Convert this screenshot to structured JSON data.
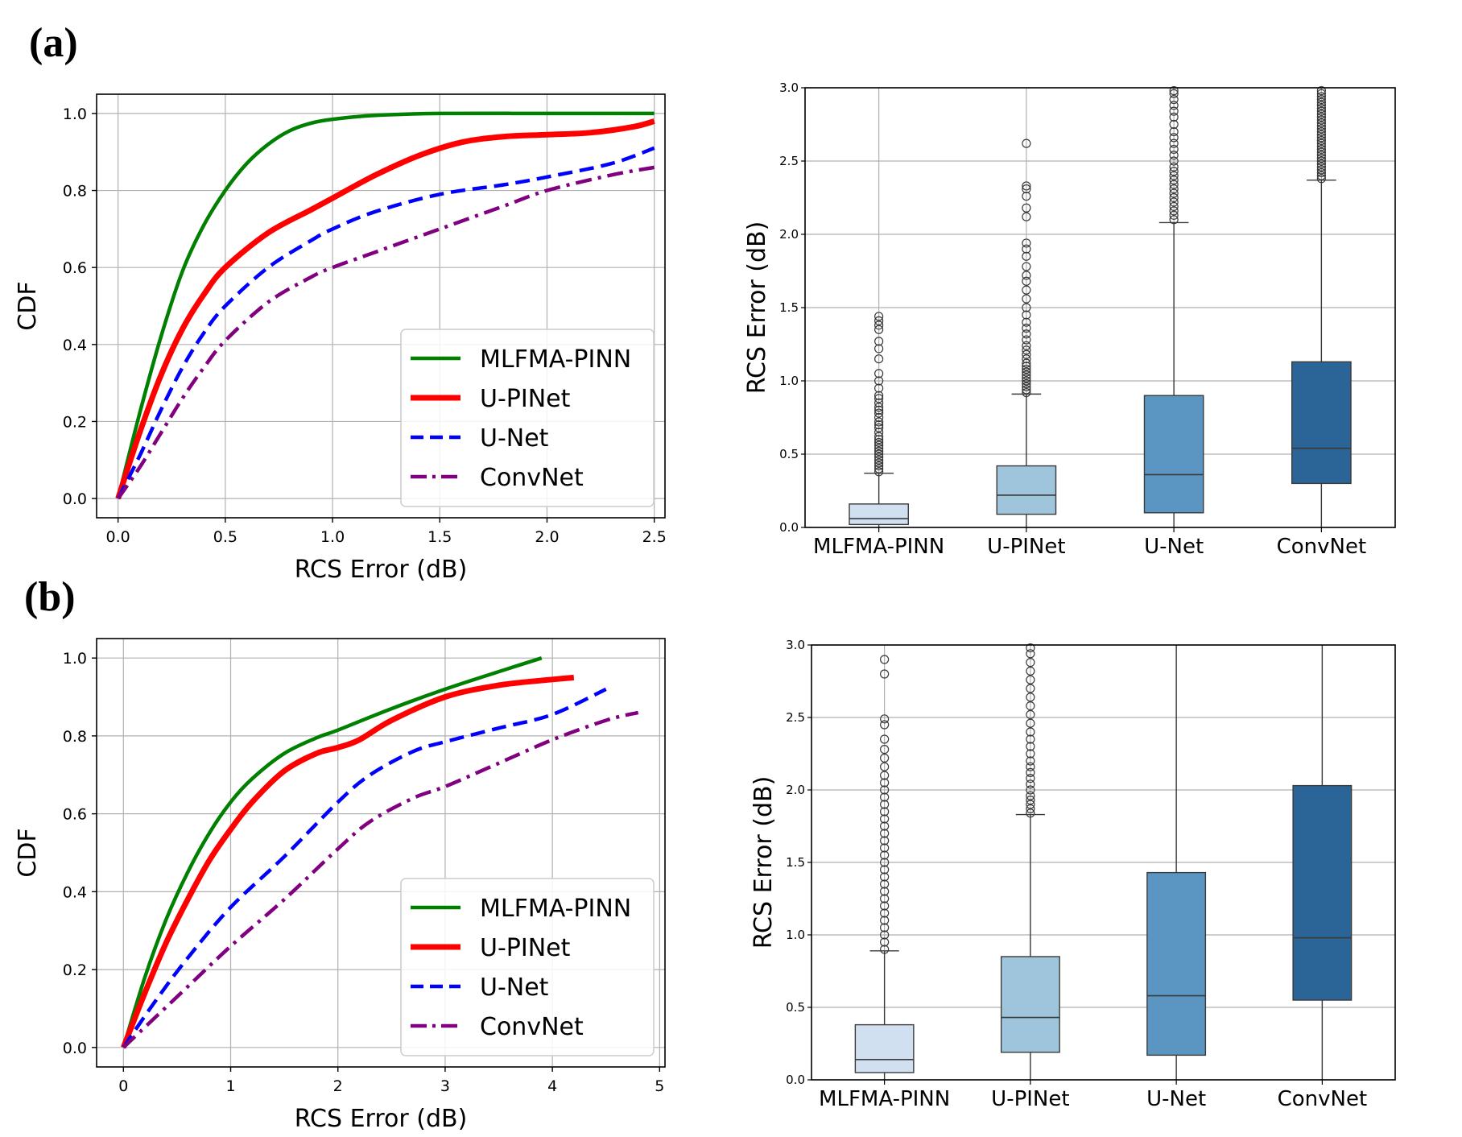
{
  "labels": {
    "a": "(a)",
    "b": "(b)"
  },
  "chart_data": [
    {
      "id": "a-cdf",
      "type": "line",
      "xlabel": "RCS Error (dB)",
      "ylabel": "CDF",
      "xlim": [
        -0.1,
        2.55
      ],
      "ylim": [
        -0.05,
        1.05
      ],
      "xticks": [
        0.0,
        0.5,
        1.0,
        1.5,
        2.0,
        2.5
      ],
      "xtick_labels": [
        "0.0",
        "0.5",
        "1.0",
        "1.5",
        "2.0",
        "2.5"
      ],
      "yticks": [
        0.0,
        0.2,
        0.4,
        0.6,
        0.8,
        1.0
      ],
      "ytick_labels": [
        "0.0",
        "0.2",
        "0.4",
        "0.6",
        "0.8",
        "1.0"
      ],
      "grid": true,
      "legend": "lower-right",
      "series": [
        {
          "name": "MLFMA-PINN",
          "color": "#008000",
          "style": "solid",
          "x": [
            0,
            0.1,
            0.2,
            0.3,
            0.4,
            0.5,
            0.6,
            0.7,
            0.8,
            0.9,
            1.0,
            1.2,
            1.5,
            2.0,
            2.5
          ],
          "y": [
            0,
            0.22,
            0.42,
            0.59,
            0.71,
            0.8,
            0.87,
            0.92,
            0.955,
            0.975,
            0.985,
            0.995,
            1.0,
            1.0,
            1.0
          ]
        },
        {
          "name": "U-PINet",
          "color": "#ff0000",
          "style": "solid",
          "x": [
            0,
            0.1,
            0.2,
            0.3,
            0.4,
            0.5,
            0.7,
            0.9,
            1.0,
            1.2,
            1.4,
            1.6,
            1.8,
            2.0,
            2.2,
            2.4,
            2.5
          ],
          "y": [
            0,
            0.17,
            0.32,
            0.44,
            0.53,
            0.6,
            0.69,
            0.75,
            0.78,
            0.84,
            0.89,
            0.925,
            0.94,
            0.945,
            0.95,
            0.965,
            0.98
          ]
        },
        {
          "name": "U-Net",
          "color": "#0000ff",
          "style": "dashed",
          "x": [
            0,
            0.1,
            0.2,
            0.3,
            0.4,
            0.5,
            0.7,
            0.9,
            1.0,
            1.2,
            1.5,
            1.8,
            2.0,
            2.3,
            2.5
          ],
          "y": [
            0,
            0.11,
            0.23,
            0.34,
            0.43,
            0.5,
            0.6,
            0.67,
            0.7,
            0.745,
            0.79,
            0.815,
            0.835,
            0.87,
            0.91
          ]
        },
        {
          "name": "ConvNet",
          "color": "#800080",
          "style": "dashdot",
          "x": [
            0,
            0.1,
            0.2,
            0.3,
            0.4,
            0.5,
            0.7,
            0.9,
            1.0,
            1.2,
            1.5,
            1.8,
            2.0,
            2.3,
            2.5
          ],
          "y": [
            0,
            0.08,
            0.17,
            0.26,
            0.34,
            0.41,
            0.51,
            0.575,
            0.6,
            0.64,
            0.7,
            0.76,
            0.8,
            0.84,
            0.86
          ]
        }
      ]
    },
    {
      "id": "a-box",
      "type": "box",
      "ylabel": "RCS Error (dB)",
      "ylim": [
        0.0,
        3.0
      ],
      "yticks": [
        0.0,
        0.5,
        1.0,
        1.5,
        2.0,
        2.5,
        3.0
      ],
      "ytick_labels": [
        "0.0",
        "0.5",
        "1.0",
        "1.5",
        "2.0",
        "2.5",
        "3.0"
      ],
      "grid": true,
      "categories": [
        "MLFMA-PINN",
        "U-PINet",
        "U-Net",
        "ConvNet"
      ],
      "colors": [
        "#d1e0f0",
        "#9ec5dc",
        "#5a96c1",
        "#2b6496"
      ],
      "boxes": [
        {
          "q1": 0.02,
          "median": 0.06,
          "q3": 0.16,
          "whisker_low": 0.0,
          "whisker_high": 0.37,
          "outliers": [
            0.38,
            0.4,
            0.42,
            0.44,
            0.46,
            0.48,
            0.5,
            0.52,
            0.54,
            0.56,
            0.58,
            0.6,
            0.62,
            0.65,
            0.68,
            0.7,
            0.72,
            0.75,
            0.78,
            0.8,
            0.82,
            0.85,
            0.88,
            0.9,
            0.95,
            1.0,
            1.05,
            1.15,
            1.22,
            1.27,
            1.35,
            1.38,
            1.41,
            1.44
          ]
        },
        {
          "q1": 0.09,
          "median": 0.22,
          "q3": 0.42,
          "whisker_low": 0.0,
          "whisker_high": 0.91,
          "outliers": [
            0.92,
            0.94,
            0.96,
            0.98,
            1.0,
            1.02,
            1.04,
            1.06,
            1.08,
            1.1,
            1.12,
            1.15,
            1.18,
            1.21,
            1.24,
            1.28,
            1.32,
            1.36,
            1.4,
            1.45,
            1.5,
            1.56,
            1.62,
            1.68,
            1.72,
            1.78,
            1.85,
            1.9,
            1.94,
            2.12,
            2.18,
            2.26,
            2.31,
            2.33,
            2.62
          ]
        },
        {
          "q1": 0.1,
          "median": 0.36,
          "q3": 0.9,
          "whisker_low": 0.0,
          "whisker_high": 2.08,
          "outliers": [
            2.1,
            2.13,
            2.16,
            2.19,
            2.22,
            2.25,
            2.28,
            2.31,
            2.34,
            2.37,
            2.4,
            2.43,
            2.46,
            2.5,
            2.54,
            2.58,
            2.62,
            2.66,
            2.7,
            2.75,
            2.8,
            2.84,
            2.88,
            2.92,
            2.96,
            2.98
          ]
        },
        {
          "q1": 0.3,
          "median": 0.54,
          "q3": 1.13,
          "whisker_low": 0.0,
          "whisker_high": 2.37,
          "outliers": [
            2.38,
            2.4,
            2.42,
            2.44,
            2.46,
            2.48,
            2.5,
            2.52,
            2.54,
            2.56,
            2.58,
            2.6,
            2.62,
            2.64,
            2.66,
            2.68,
            2.7,
            2.72,
            2.74,
            2.76,
            2.78,
            2.8,
            2.82,
            2.84,
            2.86,
            2.88,
            2.9,
            2.92,
            2.94,
            2.96,
            2.98
          ]
        }
      ]
    },
    {
      "id": "b-cdf",
      "type": "line",
      "xlabel": "RCS Error (dB)",
      "ylabel": "CDF",
      "xlim": [
        -0.25,
        5.05
      ],
      "ylim": [
        -0.05,
        1.05
      ],
      "xticks": [
        0,
        1,
        2,
        3,
        4,
        5
      ],
      "xtick_labels": [
        "0",
        "1",
        "2",
        "3",
        "4",
        "5"
      ],
      "yticks": [
        0.0,
        0.2,
        0.4,
        0.6,
        0.8,
        1.0
      ],
      "ytick_labels": [
        "0.0",
        "0.2",
        "0.4",
        "0.6",
        "0.8",
        "1.0"
      ],
      "grid": true,
      "legend": "lower-right",
      "series": [
        {
          "name": "MLFMA-PINN",
          "color": "#008000",
          "style": "solid",
          "x": [
            0,
            0.2,
            0.4,
            0.6,
            0.8,
            1.0,
            1.2,
            1.5,
            1.8,
            2.0,
            2.5,
            3.0,
            3.5,
            3.9
          ],
          "y": [
            0,
            0.18,
            0.33,
            0.45,
            0.55,
            0.63,
            0.69,
            0.755,
            0.795,
            0.815,
            0.87,
            0.92,
            0.965,
            1.0
          ]
        },
        {
          "name": "U-PINet",
          "color": "#ff0000",
          "style": "solid",
          "x": [
            0,
            0.2,
            0.4,
            0.6,
            0.8,
            1.0,
            1.2,
            1.5,
            1.8,
            2.0,
            2.2,
            2.5,
            3.0,
            3.5,
            4.0,
            4.2
          ],
          "y": [
            0,
            0.14,
            0.27,
            0.38,
            0.48,
            0.56,
            0.63,
            0.71,
            0.755,
            0.77,
            0.79,
            0.84,
            0.9,
            0.93,
            0.945,
            0.95
          ]
        },
        {
          "name": "U-Net",
          "color": "#0000ff",
          "style": "dashed",
          "x": [
            0,
            0.3,
            0.6,
            1.0,
            1.5,
            2.0,
            2.3,
            2.7,
            3.0,
            3.5,
            4.0,
            4.5
          ],
          "y": [
            0,
            0.12,
            0.23,
            0.36,
            0.49,
            0.63,
            0.7,
            0.76,
            0.785,
            0.82,
            0.855,
            0.92
          ]
        },
        {
          "name": "ConvNet",
          "color": "#800080",
          "style": "dashdot",
          "x": [
            0,
            0.5,
            1.0,
            1.5,
            2.0,
            2.3,
            2.7,
            3.0,
            3.5,
            4.0,
            4.5,
            4.8
          ],
          "y": [
            0,
            0.13,
            0.26,
            0.38,
            0.51,
            0.58,
            0.64,
            0.67,
            0.73,
            0.79,
            0.84,
            0.86
          ]
        }
      ]
    },
    {
      "id": "b-box",
      "type": "box",
      "ylabel": "RCS Error (dB)",
      "ylim": [
        0.0,
        3.0
      ],
      "yticks": [
        0.0,
        0.5,
        1.0,
        1.5,
        2.0,
        2.5,
        3.0
      ],
      "ytick_labels": [
        "0.0",
        "0.5",
        "1.0",
        "1.5",
        "2.0",
        "2.5",
        "3.0"
      ],
      "grid": true,
      "categories": [
        "MLFMA-PINN",
        "U-PINet",
        "U-Net",
        "ConvNet"
      ],
      "colors": [
        "#d1e0f0",
        "#9ec5dc",
        "#5a96c1",
        "#2b6496"
      ],
      "boxes": [
        {
          "q1": 0.05,
          "median": 0.14,
          "q3": 0.38,
          "whisker_low": 0.0,
          "whisker_high": 0.89,
          "outliers": [
            0.9,
            0.95,
            1.0,
            1.05,
            1.1,
            1.15,
            1.2,
            1.25,
            1.3,
            1.35,
            1.4,
            1.45,
            1.5,
            1.55,
            1.6,
            1.65,
            1.7,
            1.75,
            1.8,
            1.85,
            1.9,
            1.95,
            2.0,
            2.05,
            2.1,
            2.16,
            2.22,
            2.28,
            2.35,
            2.45,
            2.49,
            2.8,
            2.9
          ]
        },
        {
          "q1": 0.19,
          "median": 0.43,
          "q3": 0.85,
          "whisker_low": 0.0,
          "whisker_high": 1.83,
          "outliers": [
            1.84,
            1.87,
            1.9,
            1.93,
            1.96,
            2.0,
            2.04,
            2.08,
            2.12,
            2.16,
            2.2,
            2.25,
            2.3,
            2.35,
            2.4,
            2.46,
            2.52,
            2.58,
            2.64,
            2.7,
            2.76,
            2.82,
            2.88,
            2.94,
            2.98
          ]
        },
        {
          "q1": 0.17,
          "median": 0.58,
          "q3": 1.43,
          "whisker_low": 0.0,
          "whisker_high": 3.0,
          "outliers": []
        },
        {
          "q1": 0.55,
          "median": 0.98,
          "q3": 2.03,
          "whisker_low": 0.0,
          "whisker_high": 3.0,
          "outliers": []
        }
      ]
    }
  ]
}
